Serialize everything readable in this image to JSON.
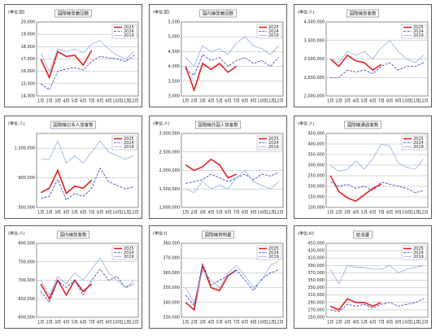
{
  "chart_data": [
    {
      "type": "line",
      "title": "国際線発着回数",
      "unit": "(単位:回)",
      "categories": [
        "1月",
        "2月",
        "3月",
        "4月",
        "5月",
        "6月",
        "7月",
        "8月",
        "9月",
        "10月",
        "11月",
        "12月"
      ],
      "series": [
        {
          "name": "2025",
          "color": "#e02020",
          "style": "solid",
          "values": [
            17000,
            15500,
            17600,
            17200,
            17300,
            16500,
            17700,
            null,
            null,
            null,
            null,
            null
          ]
        },
        {
          "name": "2024",
          "color": "#3535c0",
          "style": "dashed",
          "values": [
            15000,
            14500,
            16000,
            16200,
            16300,
            16100,
            16800,
            17200,
            17100,
            17000,
            16800,
            17300
          ]
        },
        {
          "name": "2019",
          "color": "#8fb0e0",
          "style": "solid",
          "values": [
            17500,
            16000,
            17800,
            17600,
            17800,
            17500,
            18200,
            18500,
            17800,
            17300,
            17000,
            17600
          ]
        }
      ],
      "ylim": [
        14000,
        20000
      ],
      "yticks": [
        {
          "value": 14000,
          "label": "14,000"
        },
        {
          "value": 15000,
          "label": "15,000"
        },
        {
          "value": 16000,
          "label": "16,000"
        },
        {
          "value": 17000,
          "label": "17,000"
        },
        {
          "value": 18000,
          "label": "18,000"
        },
        {
          "value": 19000,
          "label": "19,000"
        },
        {
          "value": 20000,
          "label": "20,000"
        }
      ]
    },
    {
      "type": "line",
      "title": "国内線発着回数",
      "unit": "(単位:回)",
      "categories": [
        "1月",
        "2月",
        "3月",
        "4月",
        "5月",
        "6月",
        "7月",
        "8月",
        "9月",
        "10月",
        "11月",
        "12月"
      ],
      "series": [
        {
          "name": "2025",
          "color": "#e02020",
          "style": "solid",
          "values": [
            4000,
            3200,
            4100,
            3900,
            4100,
            3800,
            4000,
            null,
            null,
            null,
            null,
            null
          ]
        },
        {
          "name": "2024",
          "color": "#3535c0",
          "style": "dashed",
          "values": [
            3900,
            3700,
            4400,
            4200,
            4300,
            4000,
            4200,
            4300,
            4100,
            4200,
            4000,
            4300
          ]
        },
        {
          "name": "2019",
          "color": "#8fb0e0",
          "style": "solid",
          "values": [
            4300,
            4000,
            4700,
            4500,
            4600,
            4400,
            4800,
            5000,
            4700,
            4600,
            4400,
            4700
          ]
        }
      ],
      "ylim": [
        3000,
        5500
      ],
      "yticks": [
        {
          "value": 3000,
          "label": "3,000"
        },
        {
          "value": 3500,
          "label": "3,500"
        },
        {
          "value": 4000,
          "label": "4,000"
        },
        {
          "value": 4500,
          "label": "4,500"
        },
        {
          "value": 5000,
          "label": "5,000"
        },
        {
          "value": 5500,
          "label": "5,500"
        }
      ]
    },
    {
      "type": "line",
      "title": "国際線旅客数",
      "unit": "(単位:人)",
      "categories": [
        "1月",
        "2月",
        "3月",
        "4月",
        "5月",
        "6月",
        "7月",
        "8月",
        "9月",
        "10月",
        "11月",
        "12月"
      ],
      "series": [
        {
          "name": "2025",
          "color": "#e02020",
          "style": "solid",
          "values": [
            3000000,
            2800000,
            3100000,
            2950000,
            2900000,
            2700000,
            2850000,
            null,
            null,
            null,
            null,
            null
          ]
        },
        {
          "name": "2024",
          "color": "#3535c0",
          "style": "dashed",
          "values": [
            2500000,
            2500000,
            2700000,
            2650000,
            2700000,
            2600000,
            2800000,
            2900000,
            2700000,
            2800000,
            2800000,
            2900000
          ]
        },
        {
          "name": "2019",
          "color": "#8fb0e0",
          "style": "solid",
          "values": [
            3000000,
            2900000,
            3200000,
            3100000,
            3200000,
            3000000,
            3300000,
            3500000,
            3200000,
            3000000,
            2900000,
            3100000
          ]
        }
      ],
      "ylim": [
        2000000,
        4000000
      ],
      "yticks": [
        {
          "value": 2000000,
          "label": "2,000,000"
        },
        {
          "value": 2500000,
          "label": "2,500,000"
        },
        {
          "value": 3000000,
          "label": "3,000,000"
        },
        {
          "value": 3500000,
          "label": "3,500,000"
        },
        {
          "value": 4000000,
          "label": "4,000,000"
        }
      ]
    },
    {
      "type": "line",
      "title": "国際線日本人旅客数",
      "unit": "(単位:人)",
      "categories": [
        "1月",
        "2月",
        "3月",
        "4月",
        "5月",
        "6月",
        "7月",
        "8月",
        "9月",
        "10月",
        "11月",
        "12月"
      ],
      "series": [
        {
          "name": "2025",
          "color": "#e02020",
          "style": "solid",
          "values": [
            700000,
            760000,
            1000000,
            690000,
            790000,
            760000,
            870000,
            null,
            null,
            null,
            null,
            null
          ]
        },
        {
          "name": "2024",
          "color": "#3535c0",
          "style": "dashed",
          "values": [
            620000,
            650000,
            880000,
            600000,
            690000,
            650000,
            760000,
            1030000,
            850000,
            800000,
            750000,
            780000
          ]
        },
        {
          "name": "2019",
          "color": "#8fb0e0",
          "style": "solid",
          "values": [
            1150000,
            1150000,
            1400000,
            1100000,
            1200000,
            1100000,
            1250000,
            1400000,
            1250000,
            1200000,
            1150000,
            1200000
          ]
        }
      ],
      "ylim": [
        500000,
        1500000
      ],
      "yticks": [
        {
          "value": 500000,
          "label": "500,000"
        },
        {
          "value": 900000,
          "label": "900,000"
        },
        {
          "value": 1300000,
          "label": "1,300,000"
        }
      ]
    },
    {
      "type": "line",
      "title": "国際線外国人旅客数",
      "unit": "(単位:人)",
      "categories": [
        "1月",
        "2月",
        "3月",
        "4月",
        "5月",
        "6月",
        "7月",
        "8月",
        "9月",
        "10月",
        "11月",
        "12月"
      ],
      "series": [
        {
          "name": "2025",
          "color": "#e02020",
          "style": "solid",
          "values": [
            2150000,
            2000000,
            2100000,
            2300000,
            2150000,
            1800000,
            1900000,
            null,
            null,
            null,
            null,
            null
          ]
        },
        {
          "name": "2024",
          "color": "#3535c0",
          "style": "dashed",
          "values": [
            1650000,
            1700000,
            1750000,
            1900000,
            1800000,
            1700000,
            1800000,
            1900000,
            1750000,
            1900000,
            1850000,
            1950000
          ]
        },
        {
          "name": "2019",
          "color": "#8fb0e0",
          "style": "solid",
          "values": [
            1500000,
            1400000,
            1700000,
            1500000,
            1600000,
            1500000,
            1800000,
            2000000,
            1700000,
            1600000,
            1500000,
            1700000
          ]
        }
      ],
      "ylim": [
        1000000,
        3000000
      ],
      "yticks": [
        {
          "value": 1000000,
          "label": "1,000,000"
        },
        {
          "value": 1500000,
          "label": "1,500,000"
        },
        {
          "value": 2000000,
          "label": "2,000,000"
        },
        {
          "value": 2500000,
          "label": "2,500,000"
        },
        {
          "value": 3000000,
          "label": "3,000,000"
        }
      ]
    },
    {
      "type": "line",
      "title": "国際線通過客数",
      "unit": "(単位:人)",
      "categories": [
        "1月",
        "2月",
        "3月",
        "4月",
        "5月",
        "6月",
        "7月",
        "8月",
        "9月",
        "10月",
        "11月",
        "12月"
      ],
      "series": [
        {
          "name": "2025",
          "color": "#e02020",
          "style": "solid",
          "values": [
            250000,
            175000,
            145000,
            130000,
            160000,
            190000,
            210000,
            null,
            null,
            null,
            null,
            null
          ]
        },
        {
          "name": "2024",
          "color": "#3535c0",
          "style": "dashed",
          "values": [
            220000,
            200000,
            210000,
            190000,
            200000,
            180000,
            220000,
            210000,
            200000,
            190000,
            170000,
            180000
          ]
        },
        {
          "name": "2019",
          "color": "#8fb0e0",
          "style": "solid",
          "values": [
            300000,
            270000,
            280000,
            320000,
            280000,
            330000,
            400000,
            390000,
            310000,
            290000,
            280000,
            330000
          ]
        }
      ],
      "ylim": [
        100000,
        450000
      ],
      "yticks": [
        {
          "value": 100000,
          "label": "100,000"
        },
        {
          "value": 150000,
          "label": "150,000"
        },
        {
          "value": 200000,
          "label": "200,000"
        },
        {
          "value": 250000,
          "label": "250,000"
        },
        {
          "value": 300000,
          "label": "300,000"
        },
        {
          "value": 350000,
          "label": "350,000"
        },
        {
          "value": 400000,
          "label": "400,000"
        },
        {
          "value": 450000,
          "label": "450,000"
        }
      ]
    },
    {
      "type": "line",
      "title": "国内線旅客数",
      "unit": "(単位:人)",
      "categories": [
        "1月",
        "2月",
        "3月",
        "4月",
        "5月",
        "6月",
        "7月",
        "8月",
        "9月",
        "10月",
        "11月",
        "12月"
      ],
      "series": [
        {
          "name": "2025",
          "color": "#e02020",
          "style": "solid",
          "values": [
            690000,
            650000,
            700000,
            660000,
            700000,
            670000,
            690000,
            null,
            null,
            null,
            null,
            null
          ]
        },
        {
          "name": "2024",
          "color": "#3535c0",
          "style": "dashed",
          "values": [
            670000,
            640000,
            700000,
            680000,
            700000,
            660000,
            700000,
            730000,
            700000,
            710000,
            680000,
            690000
          ]
        },
        {
          "name": "2019",
          "color": "#8fb0e0",
          "style": "solid",
          "values": [
            700000,
            660000,
            710000,
            690000,
            720000,
            700000,
            730000,
            760000,
            720000,
            700000,
            680000,
            700000
          ]
        }
      ],
      "ylim": [
        600000,
        800000
      ],
      "yticks": [
        {
          "value": 600000,
          "label": "600,000"
        },
        {
          "value": 650000,
          "label": "650,000"
        },
        {
          "value": 700000,
          "label": "700,000"
        },
        {
          "value": 750000,
          "label": "750,000"
        },
        {
          "value": 800000,
          "label": "800,000"
        }
      ]
    },
    {
      "type": "line",
      "title": "国際線貨物量",
      "unit": "(単位:t)",
      "categories": [
        "1月",
        "2月",
        "3月",
        "4月",
        "5月",
        "6月",
        "7月",
        "8月",
        "9月",
        "10月",
        "11月",
        "12月"
      ],
      "series": [
        {
          "name": "2025",
          "color": "#e02020",
          "style": "solid",
          "values": [
            340000,
            335000,
            365000,
            350000,
            348000,
            358000,
            362000,
            null,
            null,
            null,
            null,
            null
          ]
        },
        {
          "name": "2024",
          "color": "#3535c0",
          "style": "dashed",
          "values": [
            345000,
            338000,
            366000,
            352000,
            355000,
            358000,
            362000,
            355000,
            348000,
            356000,
            360000,
            362000
          ]
        },
        {
          "name": "2019",
          "color": "#8fb0e0",
          "style": "solid",
          "values": [
            350000,
            340000,
            362000,
            355000,
            350000,
            360000,
            365000,
            358000,
            350000,
            355000,
            365000,
            368000
          ]
        }
      ],
      "ylim": [
        330000,
        380000
      ],
      "yticks": [
        {
          "value": 330000,
          "label": "330,000"
        },
        {
          "value": 340000,
          "label": "340,000"
        },
        {
          "value": 350000,
          "label": "350,000"
        },
        {
          "value": 360000,
          "label": "360,000"
        },
        {
          "value": 370000,
          "label": "370,000"
        },
        {
          "value": 380000,
          "label": "380,000"
        }
      ]
    },
    {
      "type": "line",
      "title": "給油量",
      "unit": "(単位:kl)",
      "categories": [
        "1月",
        "2月",
        "3月",
        "4月",
        "5月",
        "6月",
        "7月",
        "8月",
        "9月",
        "10月",
        "11月",
        "12月"
      ],
      "series": [
        {
          "name": "2025",
          "color": "#e02020",
          "style": "solid",
          "values": [
            280000,
            270000,
            300000,
            290000,
            290000,
            280000,
            290000,
            null,
            null,
            null,
            null,
            null
          ]
        },
        {
          "name": "2024",
          "color": "#3535c0",
          "style": "dashed",
          "values": [
            270000,
            265000,
            285000,
            280000,
            285000,
            275000,
            285000,
            290000,
            280000,
            285000,
            290000,
            300000
          ]
        },
        {
          "name": "2019",
          "color": "#8fb0e0",
          "style": "solid",
          "values": [
            380000,
            340000,
            390000,
            385000,
            385000,
            380000,
            380000,
            390000,
            370000,
            380000,
            385000,
            390000
          ]
        }
      ],
      "ylim": [
        250000,
        450000
      ],
      "yticks": [
        {
          "value": 250000,
          "label": "250,000"
        },
        {
          "value": 270000,
          "label": "270,000"
        },
        {
          "value": 290000,
          "label": "290,000"
        },
        {
          "value": 310000,
          "label": "310,000"
        },
        {
          "value": 330000,
          "label": "330,000"
        },
        {
          "value": 350000,
          "label": "350,000"
        },
        {
          "value": 370000,
          "label": "370,000"
        },
        {
          "value": 390000,
          "label": "390,000"
        },
        {
          "value": 410000,
          "label": "410,000"
        },
        {
          "value": 430000,
          "label": "430,000"
        },
        {
          "value": 450000,
          "label": "450,000"
        }
      ]
    }
  ]
}
